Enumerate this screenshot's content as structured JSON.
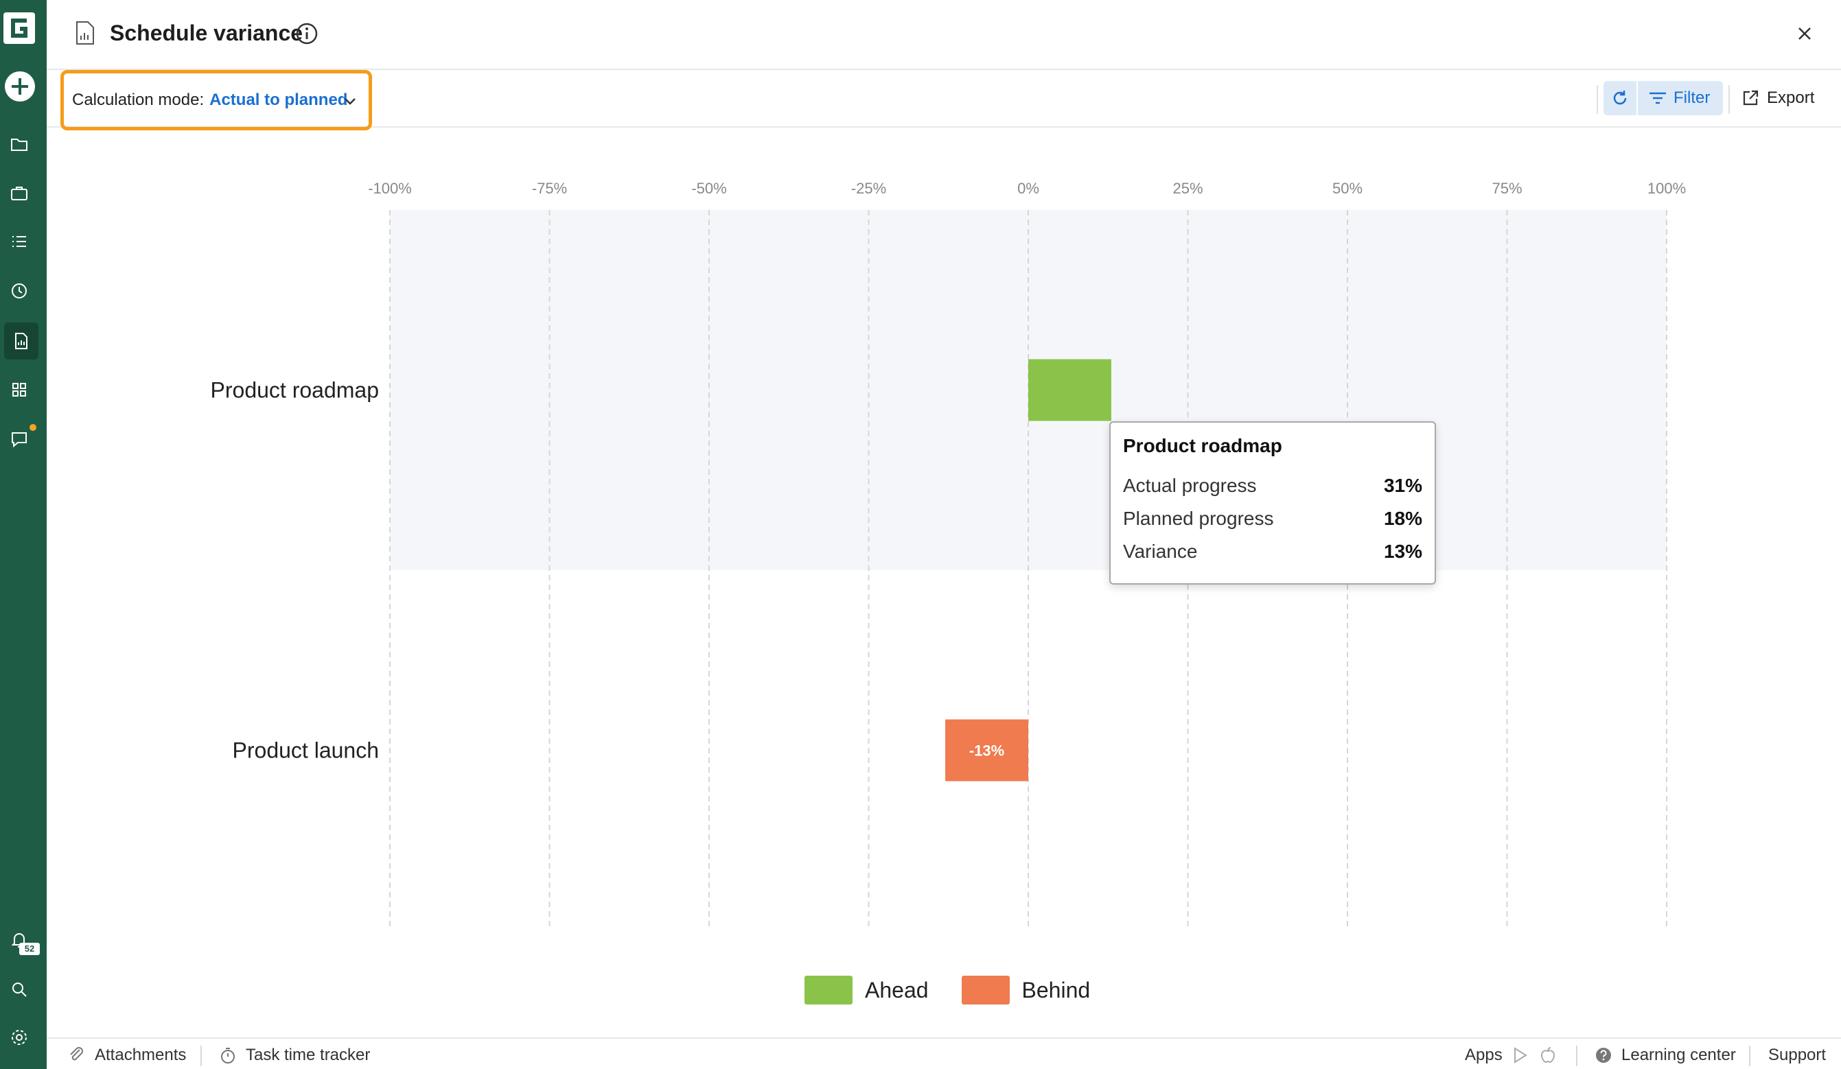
{
  "header": {
    "title": "Schedule variance",
    "close_icon": "close-icon"
  },
  "toolbar": {
    "calc_mode_label": "Calculation mode:",
    "calc_mode_value": "Actual to planned",
    "filter_label": "Filter",
    "export_label": "Export"
  },
  "rail": {
    "icons": [
      "logo-icon",
      "plus-icon",
      "folder-icon",
      "briefcase-icon",
      "list-icon",
      "clock-icon",
      "report-icon",
      "grid-icon",
      "chat-icon",
      "bell-icon",
      "search-icon",
      "gear-icon"
    ],
    "notification_count": "52"
  },
  "chart_data": {
    "type": "bar",
    "orientation": "horizontal",
    "categories": [
      "Product roadmap",
      "Product launch"
    ],
    "values": [
      13,
      -13
    ],
    "value_labels": [
      "",
      "-13%"
    ],
    "xlim": [
      -100,
      100
    ],
    "x_ticks": [
      "-100%",
      "-75%",
      "-50%",
      "-25%",
      "0%",
      "25%",
      "50%",
      "75%",
      "100%"
    ],
    "grid": true,
    "legend": [
      {
        "name": "Ahead",
        "color": "#8bc34a"
      },
      {
        "name": "Behind",
        "color": "#ef7b4f"
      }
    ],
    "legend_position": "bottom"
  },
  "tooltip": {
    "title": "Product roadmap",
    "rows": [
      {
        "key": "Actual progress",
        "value": "31%"
      },
      {
        "key": "Planned progress",
        "value": "18%"
      },
      {
        "key": "Variance",
        "value": "13%"
      }
    ]
  },
  "footer": {
    "attachments": "Attachments",
    "task_time_tracker": "Task time tracker",
    "apps": "Apps",
    "learning_center": "Learning center",
    "support": "Support"
  }
}
